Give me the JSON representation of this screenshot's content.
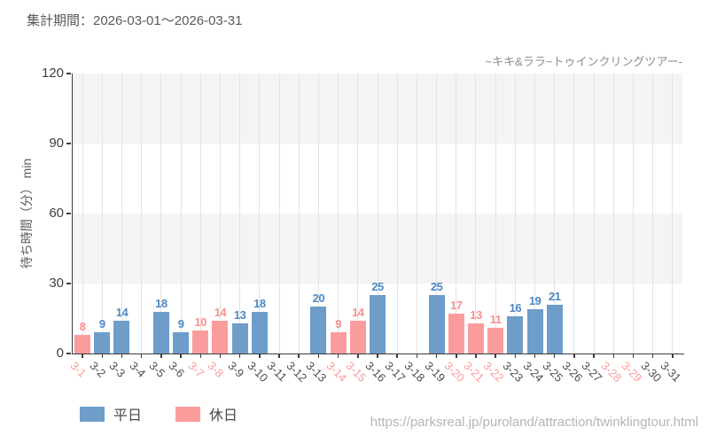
{
  "header": {
    "title": "集計期間：2026-03-01～2026-03-31",
    "subtitle": "~キキ&ララ~トゥインクリングツアー-"
  },
  "colors": {
    "weekday_bar": "#6d9dc8",
    "holiday_bar": "#fb9c9c",
    "weekday_value_label": "#4d89c3",
    "holiday_value_label": "#fa8f8f",
    "weekday_tick_label": "#4d4d4d",
    "holiday_tick_label": "#fb9b9b",
    "axis": "#3d3d3d",
    "gridline": "#e3e3e3",
    "band": "#f5f4f4",
    "title_text": "#595959",
    "subtitle_text": "#8c8c8c",
    "url_text": "#b5b5b5"
  },
  "chart_data": {
    "type": "bar",
    "title": "集計期間：2026-03-01～2026-03-31",
    "subtitle": "~キキ&ララ~トゥインクリングツアー-",
    "xlabel": "",
    "ylabel": "待ち時間（分） min",
    "ylim": [
      0,
      120
    ],
    "yticks": [
      0,
      30,
      60,
      90,
      120
    ],
    "grid": "vertical category gridlines, alternating horizontal background bands every 30 units",
    "legend_position": "bottom-left",
    "legend": [
      {
        "label": "平日",
        "series": "weekday"
      },
      {
        "label": "休日",
        "series": "holiday"
      }
    ],
    "bars": [
      {
        "date": "3-1",
        "value": 8,
        "day": "holiday"
      },
      {
        "date": "3-2",
        "value": 9,
        "day": "weekday"
      },
      {
        "date": "3-3",
        "value": 14,
        "day": "weekday"
      },
      {
        "date": "3-4",
        "value": null,
        "day": "weekday"
      },
      {
        "date": "3-5",
        "value": 18,
        "day": "weekday"
      },
      {
        "date": "3-6",
        "value": 9,
        "day": "weekday"
      },
      {
        "date": "3-7",
        "value": 10,
        "day": "holiday"
      },
      {
        "date": "3-8",
        "value": 14,
        "day": "holiday"
      },
      {
        "date": "3-9",
        "value": 13,
        "day": "weekday"
      },
      {
        "date": "3-10",
        "value": 18,
        "day": "weekday"
      },
      {
        "date": "3-11",
        "value": null,
        "day": "weekday"
      },
      {
        "date": "3-12",
        "value": null,
        "day": "weekday"
      },
      {
        "date": "3-13",
        "value": 20,
        "day": "weekday"
      },
      {
        "date": "3-14",
        "value": 9,
        "day": "holiday"
      },
      {
        "date": "3-15",
        "value": 14,
        "day": "holiday"
      },
      {
        "date": "3-16",
        "value": 25,
        "day": "weekday"
      },
      {
        "date": "3-17",
        "value": null,
        "day": "weekday"
      },
      {
        "date": "3-18",
        "value": null,
        "day": "weekday"
      },
      {
        "date": "3-19",
        "value": 25,
        "day": "weekday"
      },
      {
        "date": "3-20",
        "value": 17,
        "day": "holiday"
      },
      {
        "date": "3-21",
        "value": 13,
        "day": "holiday"
      },
      {
        "date": "3-22",
        "value": 11,
        "day": "holiday"
      },
      {
        "date": "3-23",
        "value": 16,
        "day": "weekday"
      },
      {
        "date": "3-24",
        "value": 19,
        "day": "weekday"
      },
      {
        "date": "3-25",
        "value": 21,
        "day": "weekday"
      },
      {
        "date": "3-26",
        "value": null,
        "day": "weekday"
      },
      {
        "date": "3-27",
        "value": null,
        "day": "weekday"
      },
      {
        "date": "3-28",
        "value": null,
        "day": "holiday"
      },
      {
        "date": "3-29",
        "value": null,
        "day": "holiday"
      },
      {
        "date": "3-30",
        "value": null,
        "day": "weekday"
      },
      {
        "date": "3-31",
        "value": null,
        "day": "weekday"
      }
    ]
  },
  "footer": {
    "url": "https://parksreal.jp/puroland/attraction/twinklingtour.html"
  }
}
